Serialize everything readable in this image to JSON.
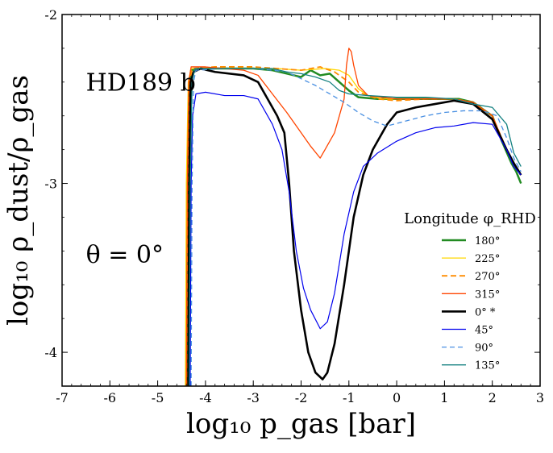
{
  "chart_data": {
    "type": "line",
    "xlabel": "log₁₀ p_gas [bar]",
    "ylabel": "log₁₀ ρ_dust/ρ_gas",
    "xlim": [
      -7,
      3
    ],
    "ylim": [
      -4.2,
      -2
    ],
    "x_ticks": [
      -7,
      -6,
      -5,
      -4,
      -3,
      -2,
      -1,
      0,
      1,
      2,
      3
    ],
    "x_tick_labels": [
      "-7",
      "-6",
      "-5",
      "-4",
      "-3",
      "-2",
      "-1",
      "0",
      "1",
      "2",
      "3"
    ],
    "y_ticks": [
      -4,
      -3,
      -2
    ],
    "y_tick_labels": [
      "-4",
      "-3",
      "-2"
    ],
    "grid": false,
    "annotations": [
      {
        "text": "HD189 b",
        "x": -6.5,
        "y": -2.45
      },
      {
        "text": "θ = 0°",
        "x": -6.5,
        "y": -3.47
      }
    ],
    "legend": {
      "title": "Longitude φ_RHD",
      "placement": "right"
    },
    "series": [
      {
        "name": "180°",
        "color": "#228B22",
        "width": 2.5,
        "dash": "",
        "points": [
          [
            -4.4,
            -4.2
          ],
          [
            -4.37,
            -3.0
          ],
          [
            -4.34,
            -2.4
          ],
          [
            -4.3,
            -2.33
          ],
          [
            -4.1,
            -2.32
          ],
          [
            -3.6,
            -2.32
          ],
          [
            -3.0,
            -2.32
          ],
          [
            -2.6,
            -2.33
          ],
          [
            -2.3,
            -2.35
          ],
          [
            -2.0,
            -2.37
          ],
          [
            -1.8,
            -2.33
          ],
          [
            -1.6,
            -2.36
          ],
          [
            -1.4,
            -2.35
          ],
          [
            -1.2,
            -2.4
          ],
          [
            -1.0,
            -2.45
          ],
          [
            -0.8,
            -2.49
          ],
          [
            -0.4,
            -2.5
          ],
          [
            0.0,
            -2.5
          ],
          [
            0.4,
            -2.5
          ],
          [
            1.0,
            -2.5
          ],
          [
            1.3,
            -2.5
          ],
          [
            1.6,
            -2.52
          ],
          [
            2.0,
            -2.6
          ],
          [
            2.2,
            -2.75
          ],
          [
            2.4,
            -2.88
          ],
          [
            2.5,
            -2.93
          ],
          [
            2.6,
            -3.0
          ]
        ]
      },
      {
        "name": "225°",
        "color": "#FFD700",
        "width": 1.3,
        "dash": "",
        "points": [
          [
            -4.42,
            -4.2
          ],
          [
            -4.4,
            -3.0
          ],
          [
            -4.36,
            -2.4
          ],
          [
            -4.3,
            -2.32
          ],
          [
            -3.8,
            -2.32
          ],
          [
            -3.0,
            -2.32
          ],
          [
            -2.5,
            -2.32
          ],
          [
            -2.0,
            -2.33
          ],
          [
            -1.5,
            -2.32
          ],
          [
            -1.2,
            -2.33
          ],
          [
            -1.0,
            -2.36
          ],
          [
            -0.8,
            -2.44
          ],
          [
            -0.6,
            -2.48
          ],
          [
            -0.3,
            -2.5
          ],
          [
            0.2,
            -2.5
          ],
          [
            0.8,
            -2.5
          ],
          [
            1.2,
            -2.5
          ],
          [
            1.6,
            -2.52
          ],
          [
            2.0,
            -2.6
          ],
          [
            2.3,
            -2.8
          ],
          [
            2.45,
            -2.88
          ],
          [
            2.6,
            -2.95
          ]
        ]
      },
      {
        "name": "270°",
        "color": "#FF8C00",
        "width": 1.8,
        "dash": "7,4",
        "points": [
          [
            -4.38,
            -4.2
          ],
          [
            -4.36,
            -3.0
          ],
          [
            -4.33,
            -2.4
          ],
          [
            -4.28,
            -2.32
          ],
          [
            -3.8,
            -2.31
          ],
          [
            -3.0,
            -2.31
          ],
          [
            -2.5,
            -2.32
          ],
          [
            -2.0,
            -2.33
          ],
          [
            -1.6,
            -2.31
          ],
          [
            -1.3,
            -2.34
          ],
          [
            -1.0,
            -2.4
          ],
          [
            -0.8,
            -2.46
          ],
          [
            -0.4,
            -2.5
          ],
          [
            0.0,
            -2.51
          ],
          [
            0.6,
            -2.5
          ],
          [
            1.2,
            -2.5
          ],
          [
            1.6,
            -2.52
          ],
          [
            2.0,
            -2.6
          ],
          [
            2.3,
            -2.8
          ],
          [
            2.45,
            -2.88
          ],
          [
            2.6,
            -2.95
          ]
        ]
      },
      {
        "name": "315°",
        "color": "#FF4500",
        "width": 1.3,
        "dash": "",
        "points": [
          [
            -4.4,
            -4.2
          ],
          [
            -4.38,
            -3.0
          ],
          [
            -4.35,
            -2.4
          ],
          [
            -4.3,
            -2.31
          ],
          [
            -4.0,
            -2.31
          ],
          [
            -3.6,
            -2.32
          ],
          [
            -3.2,
            -2.33
          ],
          [
            -2.9,
            -2.36
          ],
          [
            -2.6,
            -2.47
          ],
          [
            -2.3,
            -2.58
          ],
          [
            -2.0,
            -2.7
          ],
          [
            -1.8,
            -2.78
          ],
          [
            -1.6,
            -2.85
          ],
          [
            -1.5,
            -2.8
          ],
          [
            -1.3,
            -2.7
          ],
          [
            -1.1,
            -2.5
          ],
          [
            -1.05,
            -2.3
          ],
          [
            -1.0,
            -2.2
          ],
          [
            -0.95,
            -2.22
          ],
          [
            -0.9,
            -2.3
          ],
          [
            -0.8,
            -2.42
          ],
          [
            -0.6,
            -2.48
          ],
          [
            -0.3,
            -2.49
          ],
          [
            0.0,
            -2.5
          ],
          [
            0.6,
            -2.5
          ],
          [
            1.2,
            -2.5
          ],
          [
            1.6,
            -2.52
          ],
          [
            2.0,
            -2.6
          ],
          [
            2.3,
            -2.8
          ],
          [
            2.45,
            -2.88
          ],
          [
            2.6,
            -2.95
          ]
        ]
      },
      {
        "name": "0° *",
        "color": "#000000",
        "width": 2.6,
        "dash": "",
        "points": [
          [
            -4.36,
            -4.2
          ],
          [
            -4.34,
            -3.0
          ],
          [
            -4.31,
            -2.4
          ],
          [
            -4.25,
            -2.34
          ],
          [
            -4.1,
            -2.32
          ],
          [
            -3.8,
            -2.34
          ],
          [
            -3.2,
            -2.36
          ],
          [
            -2.9,
            -2.4
          ],
          [
            -2.7,
            -2.5
          ],
          [
            -2.5,
            -2.6
          ],
          [
            -2.35,
            -2.7
          ],
          [
            -2.25,
            -3.0
          ],
          [
            -2.15,
            -3.4
          ],
          [
            -2.0,
            -3.75
          ],
          [
            -1.85,
            -4.0
          ],
          [
            -1.7,
            -4.12
          ],
          [
            -1.55,
            -4.16
          ],
          [
            -1.45,
            -4.12
          ],
          [
            -1.3,
            -3.95
          ],
          [
            -1.1,
            -3.6
          ],
          [
            -0.9,
            -3.2
          ],
          [
            -0.7,
            -2.95
          ],
          [
            -0.5,
            -2.8
          ],
          [
            -0.2,
            -2.65
          ],
          [
            0.0,
            -2.58
          ],
          [
            0.4,
            -2.55
          ],
          [
            0.8,
            -2.53
          ],
          [
            1.2,
            -2.51
          ],
          [
            1.6,
            -2.53
          ],
          [
            2.0,
            -2.62
          ],
          [
            2.3,
            -2.8
          ],
          [
            2.45,
            -2.88
          ],
          [
            2.6,
            -2.95
          ]
        ]
      },
      {
        "name": "45°",
        "color": "#0000EE",
        "width": 1.2,
        "dash": "",
        "points": [
          [
            -4.32,
            -4.2
          ],
          [
            -4.3,
            -3.0
          ],
          [
            -4.27,
            -2.6
          ],
          [
            -4.2,
            -2.47
          ],
          [
            -4.0,
            -2.46
          ],
          [
            -3.6,
            -2.48
          ],
          [
            -3.2,
            -2.48
          ],
          [
            -2.9,
            -2.5
          ],
          [
            -2.6,
            -2.65
          ],
          [
            -2.4,
            -2.8
          ],
          [
            -2.25,
            -3.05
          ],
          [
            -2.1,
            -3.4
          ],
          [
            -1.95,
            -3.62
          ],
          [
            -1.8,
            -3.75
          ],
          [
            -1.6,
            -3.86
          ],
          [
            -1.45,
            -3.82
          ],
          [
            -1.3,
            -3.65
          ],
          [
            -1.1,
            -3.3
          ],
          [
            -0.9,
            -3.05
          ],
          [
            -0.7,
            -2.9
          ],
          [
            -0.4,
            -2.82
          ],
          [
            0.0,
            -2.75
          ],
          [
            0.4,
            -2.7
          ],
          [
            0.8,
            -2.67
          ],
          [
            1.2,
            -2.66
          ],
          [
            1.6,
            -2.64
          ],
          [
            2.0,
            -2.65
          ],
          [
            2.3,
            -2.8
          ],
          [
            2.45,
            -2.9
          ],
          [
            2.6,
            -2.95
          ]
        ]
      },
      {
        "name": "90°",
        "color": "#4A90E2",
        "width": 1.3,
        "dash": "6,4",
        "points": [
          [
            -4.3,
            -4.2
          ],
          [
            -4.28,
            -3.0
          ],
          [
            -4.25,
            -2.4
          ],
          [
            -4.2,
            -2.33
          ],
          [
            -3.6,
            -2.32
          ],
          [
            -3.0,
            -2.32
          ],
          [
            -2.6,
            -2.33
          ],
          [
            -2.3,
            -2.34
          ],
          [
            -2.0,
            -2.38
          ],
          [
            -1.7,
            -2.42
          ],
          [
            -1.4,
            -2.47
          ],
          [
            -1.1,
            -2.52
          ],
          [
            -0.8,
            -2.58
          ],
          [
            -0.5,
            -2.63
          ],
          [
            -0.2,
            -2.66
          ],
          [
            0.2,
            -2.63
          ],
          [
            0.6,
            -2.6
          ],
          [
            1.0,
            -2.58
          ],
          [
            1.4,
            -2.57
          ],
          [
            1.8,
            -2.57
          ],
          [
            2.1,
            -2.6
          ],
          [
            2.3,
            -2.73
          ],
          [
            2.45,
            -2.85
          ],
          [
            2.6,
            -2.93
          ]
        ]
      },
      {
        "name": "135°",
        "color": "#138080",
        "width": 1.3,
        "dash": "",
        "points": [
          [
            -4.34,
            -4.2
          ],
          [
            -4.32,
            -3.0
          ],
          [
            -4.28,
            -2.4
          ],
          [
            -4.22,
            -2.32
          ],
          [
            -3.6,
            -2.32
          ],
          [
            -3.0,
            -2.32
          ],
          [
            -2.6,
            -2.32
          ],
          [
            -2.3,
            -2.34
          ],
          [
            -2.0,
            -2.35
          ],
          [
            -1.7,
            -2.37
          ],
          [
            -1.4,
            -2.4
          ],
          [
            -1.2,
            -2.45
          ],
          [
            -1.0,
            -2.47
          ],
          [
            -0.6,
            -2.48
          ],
          [
            0.0,
            -2.49
          ],
          [
            0.6,
            -2.49
          ],
          [
            1.2,
            -2.5
          ],
          [
            1.6,
            -2.53
          ],
          [
            2.0,
            -2.55
          ],
          [
            2.3,
            -2.65
          ],
          [
            2.45,
            -2.82
          ],
          [
            2.6,
            -2.9
          ]
        ]
      }
    ]
  }
}
